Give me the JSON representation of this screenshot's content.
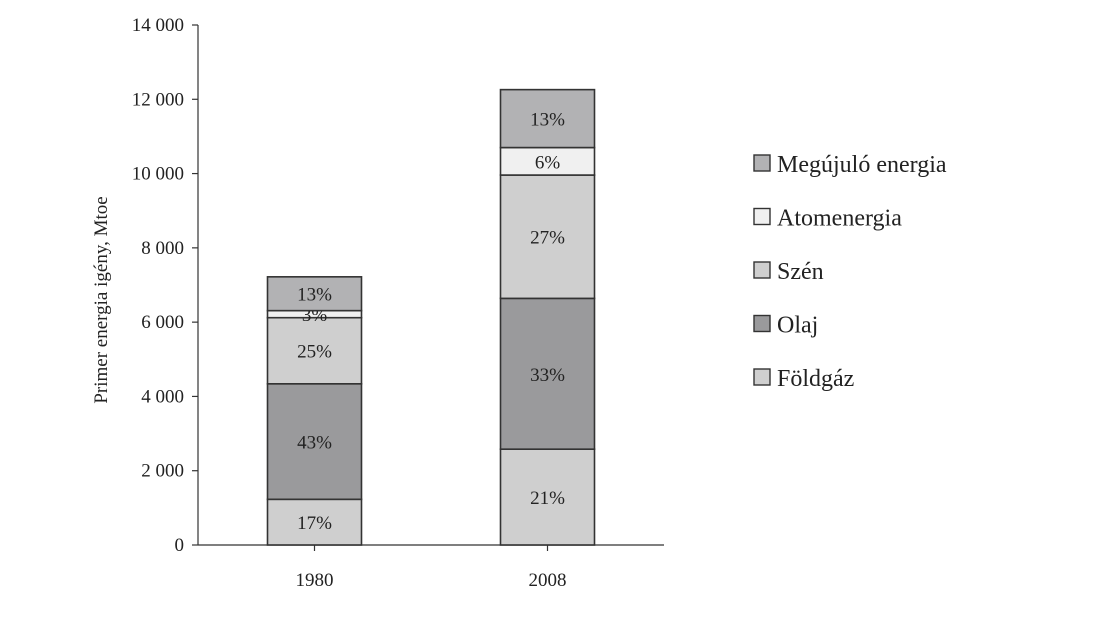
{
  "chart_data": {
    "type": "bar",
    "stacked": true,
    "ylabel": "Primer energia igény, Mtoe",
    "xlabel": "",
    "ylim": [
      0,
      14000
    ],
    "yticks": [
      0,
      2000,
      4000,
      6000,
      8000,
      10000,
      12000,
      14000
    ],
    "ytick_labels": [
      "0",
      "2 000",
      "4 000",
      "6 000",
      "8 000",
      "10 000",
      "12 000",
      "14 000"
    ],
    "categories": [
      "1980",
      "2008"
    ],
    "grid": false,
    "legend_position": "right",
    "series": [
      {
        "name": "Földgáz",
        "color": "#cfcfcf",
        "values": [
          1230,
          2580
        ],
        "labels": [
          "17%",
          "21%"
        ]
      },
      {
        "name": "Olaj",
        "color": "#9a9a9c",
        "values": [
          3110,
          4060
        ],
        "labels": [
          "43%",
          "33%"
        ]
      },
      {
        "name": "Szén",
        "color": "#cfcfcf",
        "values": [
          1780,
          3320
        ],
        "labels": [
          "25%",
          "27%"
        ]
      },
      {
        "name": "Atomenergia",
        "color": "#f0f0f0",
        "values": [
          190,
          740
        ],
        "labels": [
          "3%",
          "6%"
        ]
      },
      {
        "name": "Megújuló energia",
        "color": "#b2b2b4",
        "values": [
          910,
          1560
        ],
        "labels": [
          "13%",
          "13%"
        ]
      }
    ]
  }
}
